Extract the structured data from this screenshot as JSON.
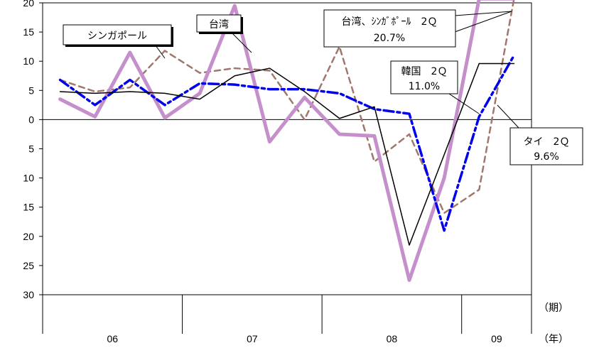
{
  "chart_data": {
    "type": "line",
    "title": "",
    "xlabel": "",
    "ylabel": "",
    "ylim": [
      -30,
      20
    ],
    "yticks": [
      20,
      15,
      10,
      5,
      0,
      -5,
      -10,
      -15,
      -20,
      -25,
      -30
    ],
    "ytick_labels": [
      "20",
      "15",
      "10",
      "5",
      "0",
      "5",
      "10",
      "15",
      "20",
      "25",
      "30"
    ],
    "grid": false,
    "x": [
      "06-Q1",
      "06-Q2",
      "06-Q3",
      "06-Q4",
      "07-Q1",
      "07-Q2",
      "07-Q3",
      "07-Q4",
      "08-Q1",
      "08-Q2",
      "08-Q3",
      "08-Q4",
      "09-Q1",
      "09-Q2"
    ],
    "year_labels": [
      {
        "label": "06",
        "quarters": 4
      },
      {
        "label": "07",
        "quarters": 4
      },
      {
        "label": "08",
        "quarters": 4
      },
      {
        "label": "09",
        "quarters": 2
      }
    ],
    "period_unit_label": "（期）",
    "year_unit_label": "（年）",
    "series": [
      {
        "name": "シンガポール",
        "color": "#a0776a",
        "style": "dashed",
        "values": [
          6.8,
          4.8,
          5.5,
          11.8,
          8.0,
          8.8,
          8.4,
          0.0,
          12.5,
          -7.2,
          -2.5,
          -16.0,
          -12.0,
          20.7
        ]
      },
      {
        "name": "台湾",
        "color": "#c58fcc",
        "style": "thick",
        "values": [
          3.5,
          0.5,
          11.5,
          0.3,
          4.5,
          19.5,
          -3.8,
          3.8,
          -2.5,
          -2.8,
          -27.5,
          -10.0,
          20.7,
          20.7
        ]
      },
      {
        "name": "韓国",
        "color": "#0000ee",
        "style": "dashdot",
        "values": [
          6.8,
          2.5,
          6.8,
          2.5,
          6.2,
          6.0,
          5.2,
          5.2,
          4.5,
          1.8,
          1.0,
          -19.0,
          0.5,
          11.0
        ]
      },
      {
        "name": "タイ",
        "color": "#000000",
        "style": "thin",
        "values": [
          4.8,
          4.5,
          4.8,
          4.5,
          3.5,
          7.5,
          8.8,
          4.8,
          0.2,
          2.2,
          -21.5,
          -6.0,
          9.6,
          9.6
        ]
      }
    ],
    "annotations": {
      "singapore_label": "シンガポール",
      "taiwan_label": "台湾",
      "taiwan_sg_q2_label": "台湾、ｼﾝｶﾞﾎﾟｰﾙ　2Ｑ",
      "taiwan_sg_q2_value": "20.7%",
      "korea_q2_label": "韓国　2Ｑ",
      "korea_q2_value": "11.0%",
      "thai_q2_label": "タイ　2Ｑ",
      "thai_q2_value": "9.6%"
    }
  }
}
